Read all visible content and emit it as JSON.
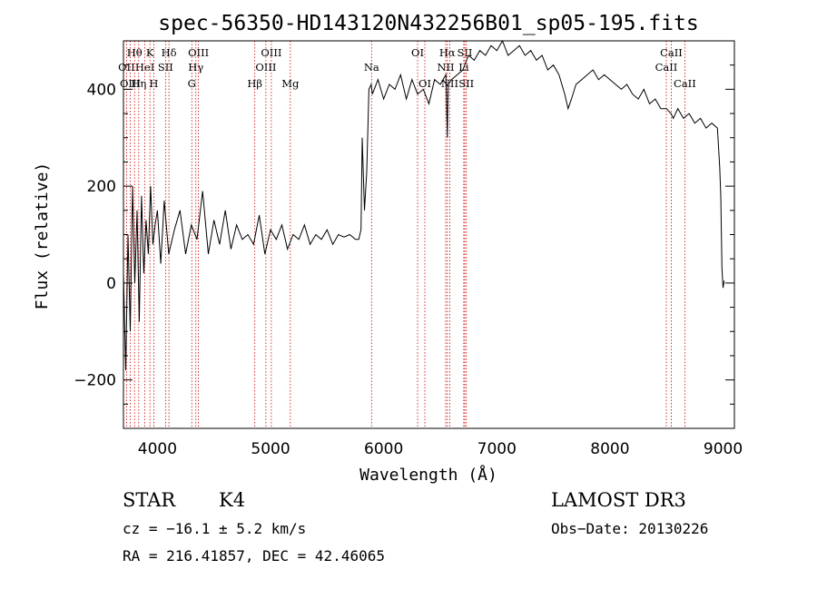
{
  "chart_data": {
    "type": "line",
    "title": "spec-56350-HD143120N432256B01_sp05-195.fits",
    "xlabel": "Wavelength (Å)",
    "ylabel": "Flux (relative)",
    "xlim": [
      3700,
      9100
    ],
    "ylim": [
      -300,
      500
    ],
    "x_ticks": [
      4000,
      5000,
      6000,
      7000,
      8000,
      9000
    ],
    "y_ticks": [
      -200,
      0,
      200,
      400
    ],
    "grid": false,
    "series": [
      {
        "x": [
          3700,
          3720,
          3740,
          3760,
          3780,
          3800,
          3820,
          3840,
          3860,
          3880,
          3900,
          3920,
          3940,
          3960,
          3980,
          4000,
          4030,
          4060,
          4100,
          4150,
          4200,
          4250,
          4300,
          4350,
          4400,
          4450,
          4500,
          4550,
          4600,
          4650,
          4700,
          4750,
          4800,
          4850,
          4900,
          4950,
          5000,
          5050,
          5100,
          5150,
          5200,
          5250,
          5300,
          5350,
          5400,
          5450,
          5500,
          5550,
          5600,
          5650,
          5700,
          5750,
          5780,
          5800,
          5810,
          5830,
          5850,
          5870,
          5890,
          5900,
          5950,
          6000,
          6050,
          6100,
          6150,
          6200,
          6250,
          6300,
          6350,
          6400,
          6450,
          6500,
          6550,
          6563,
          6570,
          6600,
          6650,
          6700,
          6750,
          6800,
          6850,
          6900,
          6950,
          7000,
          7050,
          7100,
          7150,
          7200,
          7250,
          7300,
          7350,
          7400,
          7450,
          7500,
          7550,
          7600,
          7630,
          7660,
          7700,
          7750,
          7800,
          7850,
          7900,
          7950,
          8000,
          8050,
          8100,
          8150,
          8200,
          8250,
          8300,
          8350,
          8400,
          8450,
          8500,
          8540,
          8560,
          8600,
          8650,
          8700,
          8750,
          8800,
          8850,
          8900,
          8950,
          8970,
          8980,
          8990,
          9000,
          9010
        ],
        "y": [
          20,
          -180,
          100,
          -100,
          200,
          0,
          150,
          -80,
          180,
          20,
          130,
          60,
          200,
          80,
          120,
          150,
          40,
          170,
          60,
          110,
          150,
          60,
          120,
          90,
          190,
          60,
          130,
          80,
          150,
          70,
          120,
          90,
          100,
          80,
          140,
          60,
          110,
          90,
          120,
          70,
          100,
          90,
          120,
          80,
          100,
          90,
          110,
          80,
          100,
          95,
          100,
          90,
          90,
          110,
          300,
          150,
          230,
          400,
          410,
          390,
          420,
          380,
          410,
          400,
          430,
          380,
          420,
          390,
          400,
          370,
          420,
          410,
          430,
          300,
          410,
          420,
          430,
          440,
          470,
          460,
          480,
          470,
          490,
          480,
          500,
          470,
          480,
          490,
          470,
          480,
          460,
          470,
          440,
          450,
          430,
          390,
          360,
          380,
          410,
          420,
          430,
          440,
          420,
          430,
          420,
          410,
          400,
          410,
          390,
          380,
          400,
          370,
          380,
          360,
          360,
          350,
          340,
          360,
          340,
          350,
          330,
          340,
          320,
          330,
          320,
          240,
          180,
          30,
          -10,
          5
        ]
      }
    ],
    "lines": [
      {
        "label": "Hθ",
        "x": 3798,
        "row": 1
      },
      {
        "label": "OII",
        "x": 3727,
        "row": 2
      },
      {
        "label": "OIII",
        "x": 3760,
        "row": 3
      },
      {
        "label": "K",
        "x": 3934,
        "row": 1
      },
      {
        "label": "HeI",
        "x": 3889,
        "row": 2
      },
      {
        "label": "Hη",
        "x": 3835,
        "row": 3
      },
      {
        "label": "SII",
        "x": 4072,
        "row": 2
      },
      {
        "label": "H",
        "x": 3968,
        "row": 3
      },
      {
        "label": "Hδ",
        "x": 4102,
        "row": 1
      },
      {
        "label": "OIII",
        "x": 4363,
        "row": 1
      },
      {
        "label": "Hγ",
        "x": 4340,
        "row": 2
      },
      {
        "label": "G",
        "x": 4304,
        "row": 3
      },
      {
        "label": "Hβ",
        "x": 4861,
        "row": 3
      },
      {
        "label": "OIII",
        "x": 5007,
        "row": 1
      },
      {
        "label": "OIII",
        "x": 4959,
        "row": 2
      },
      {
        "label": "Mg",
        "x": 5175,
        "row": 3
      },
      {
        "label": "Na",
        "x": 5893,
        "row": 2
      },
      {
        "label": "OI",
        "x": 6300,
        "row": 1
      },
      {
        "label": "OI",
        "x": 6364,
        "row": 3
      },
      {
        "label": "Hα",
        "x": 6563,
        "row": 1
      },
      {
        "label": "NII",
        "x": 6548,
        "row": 2
      },
      {
        "label": "NII",
        "x": 6584,
        "row": 3
      },
      {
        "label": "SII",
        "x": 6717,
        "row": 1
      },
      {
        "label": "Li",
        "x": 6708,
        "row": 2
      },
      {
        "label": "SII",
        "x": 6731,
        "row": 3
      },
      {
        "label": "CaII",
        "x": 8542,
        "row": 1
      },
      {
        "label": "CaII",
        "x": 8498,
        "row": 2
      },
      {
        "label": "CaII",
        "x": 8662,
        "row": 3
      }
    ]
  },
  "info": {
    "class": "STAR",
    "subclass": "K4",
    "survey": "LAMOST DR3",
    "cz": "cz = −16.1 ± 5.2 km/s",
    "obsdate": "Obs−Date: 20130226",
    "radec": "RA = 216.41857, DEC =  42.46065"
  }
}
